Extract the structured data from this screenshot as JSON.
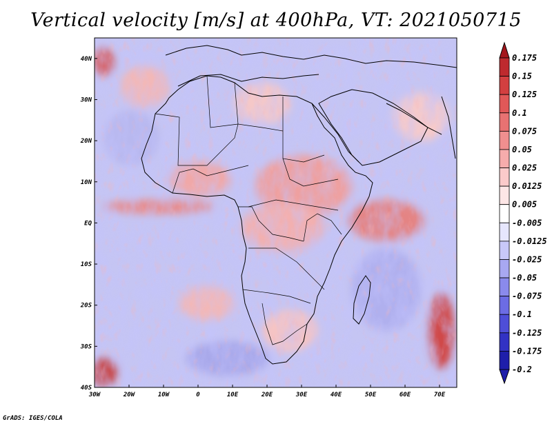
{
  "title": "Vertical velocity [m/s] at 400hPa, VT: 2021050715",
  "credit": "GrADS: IGES/COLA",
  "map": {
    "region": "Africa",
    "projection": "latlon",
    "lon_range": [
      -30,
      75
    ],
    "lat_range": [
      -40,
      45
    ],
    "lon_ticks": [
      {
        "value": -30,
        "label": "30W"
      },
      {
        "value": -20,
        "label": "20W"
      },
      {
        "value": -10,
        "label": "10W"
      },
      {
        "value": 0,
        "label": "0"
      },
      {
        "value": 10,
        "label": "10E"
      },
      {
        "value": 20,
        "label": "20E"
      },
      {
        "value": 30,
        "label": "30E"
      },
      {
        "value": 40,
        "label": "40E"
      },
      {
        "value": 50,
        "label": "50E"
      },
      {
        "value": 60,
        "label": "60E"
      },
      {
        "value": 70,
        "label": "70E"
      }
    ],
    "lat_ticks": [
      {
        "value": 40,
        "label": "40N"
      },
      {
        "value": 30,
        "label": "30N"
      },
      {
        "value": 20,
        "label": "20N"
      },
      {
        "value": 10,
        "label": "10N"
      },
      {
        "value": 0,
        "label": "EQ"
      },
      {
        "value": -10,
        "label": "10S"
      },
      {
        "value": -20,
        "label": "20S"
      },
      {
        "value": -30,
        "label": "30S"
      },
      {
        "value": -40,
        "label": "40S"
      }
    ]
  },
  "colorbar": {
    "levels": [
      {
        "label": "0.175",
        "color": "#a4161c"
      },
      {
        "label": "0.15",
        "color": "#be2a2e"
      },
      {
        "label": "0.125",
        "color": "#d23f40"
      },
      {
        "label": "0.1",
        "color": "#e05858"
      },
      {
        "label": "0.075",
        "color": "#e87272"
      },
      {
        "label": "0.05",
        "color": "#f08f8f"
      },
      {
        "label": "0.025",
        "color": "#f6acac"
      },
      {
        "label": "0.0125",
        "color": "#fbcaca"
      },
      {
        "label": "0.005",
        "color": "#fde6e6"
      },
      {
        "label": "-0.005",
        "color": "#ffffff"
      },
      {
        "label": "-0.0125",
        "color": "#e6e6fd"
      },
      {
        "label": "-0.025",
        "color": "#c8c8f8"
      },
      {
        "label": "-0.05",
        "color": "#a8a8f2"
      },
      {
        "label": "-0.075",
        "color": "#8a8aec"
      },
      {
        "label": "-0.1",
        "color": "#6c6ce4"
      },
      {
        "label": "-0.125",
        "color": "#4e4ed8"
      },
      {
        "label": "-0.175",
        "color": "#3232c4"
      },
      {
        "label": "-0.2",
        "color": "#1e1eaa"
      }
    ],
    "top_color": "#a4161c",
    "bottom_color": "#1e1eaa"
  }
}
